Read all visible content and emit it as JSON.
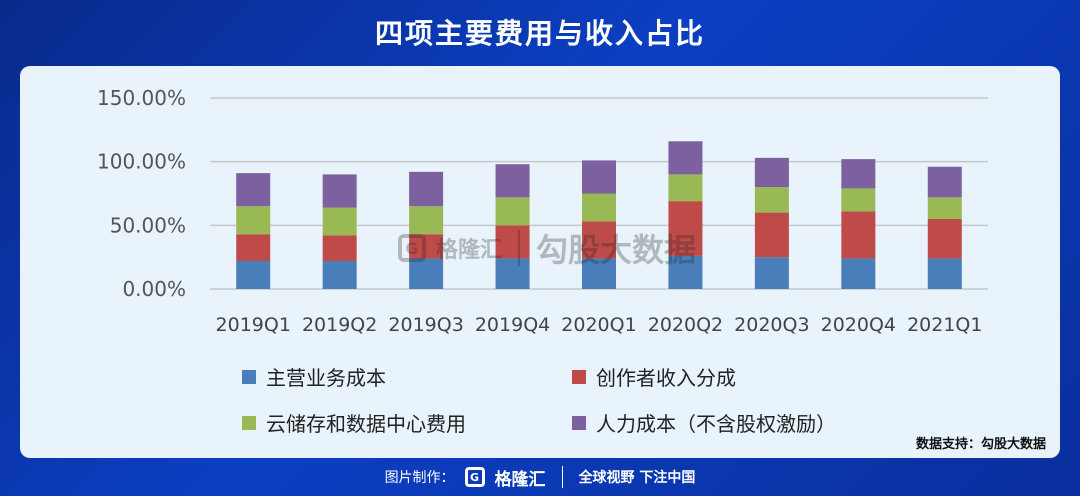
{
  "title": "四项主要费用与收入占比",
  "source_text": "数据支持：勾股大数据",
  "watermark": {
    "logo_glyph": "G",
    "brand": "格隆汇",
    "text": "勾股大数据"
  },
  "footer": {
    "label": "图片制作：",
    "logo_glyph": "G",
    "brand": "格隆汇",
    "slogan": "全球视野 下注中国"
  },
  "chart_data": {
    "type": "bar",
    "stacked": true,
    "title": "四项主要费用与收入占比",
    "xlabel": "",
    "ylabel": "",
    "ylim": [
      0,
      150
    ],
    "yticks": [
      0,
      50,
      100,
      150
    ],
    "ytick_labels": [
      "0.00%",
      "50.00%",
      "100.00%",
      "150.00%"
    ],
    "grid": true,
    "legend_position": "bottom",
    "categories": [
      "2019Q1",
      "2019Q2",
      "2019Q3",
      "2019Q4",
      "2020Q1",
      "2020Q2",
      "2020Q3",
      "2020Q4",
      "2021Q1"
    ],
    "series": [
      {
        "name": "主营业务成本",
        "color": "#4a7ebb",
        "values": [
          22,
          22,
          24,
          24,
          24,
          26,
          25,
          24,
          24
        ]
      },
      {
        "name": "创作者收入分成",
        "color": "#be4b48",
        "values": [
          21,
          20,
          19,
          26,
          29,
          43,
          35,
          37,
          31
        ]
      },
      {
        "name": "云储存和数据中心费用",
        "color": "#98b954",
        "values": [
          22,
          22,
          22,
          22,
          22,
          21,
          20,
          18,
          17
        ]
      },
      {
        "name": "人力成本（不含股权激励）",
        "color": "#7d60a0",
        "values": [
          26,
          26,
          27,
          26,
          26,
          26,
          23,
          23,
          24
        ]
      }
    ]
  }
}
